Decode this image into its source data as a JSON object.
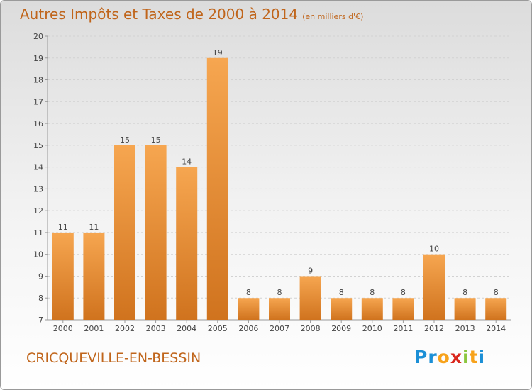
{
  "header": {
    "title": "Autres Impôts et Taxes de 2000 à 2014",
    "subtitle": "(en milliers d'€)"
  },
  "footer": {
    "town": "CRICQUEVILLE-EN-BESSIN",
    "logo_letters": [
      "P",
      "r",
      "o",
      "x",
      "i",
      "t",
      "i"
    ]
  },
  "colors": {
    "accent": "#c0651b",
    "bar_light": "#f6a650",
    "bar_dark": "#d0731e",
    "logo": [
      "#1b8fd6",
      "#1b8fd6",
      "#f7a21b",
      "#d9261c",
      "#8cc63f",
      "#f7a21b",
      "#1b8fd6"
    ]
  },
  "chart_data": {
    "type": "bar",
    "title": "Autres Impôts et Taxes de 2000 à 2014",
    "subtitle": "(en milliers d'€)",
    "xlabel": "",
    "ylabel": "",
    "categories": [
      "2000",
      "2001",
      "2002",
      "2003",
      "2004",
      "2005",
      "2006",
      "2007",
      "2008",
      "2009",
      "2010",
      "2011",
      "2012",
      "2013",
      "2014"
    ],
    "values": [
      11,
      11,
      15,
      15,
      14,
      19,
      8,
      8,
      9,
      8,
      8,
      8,
      10,
      8,
      8
    ],
    "data_labels": [
      "11",
      "11",
      "15",
      "15",
      "14",
      "19",
      "8",
      "8",
      "9",
      "8",
      "8",
      "8",
      "10",
      "8",
      "8"
    ],
    "ylim": [
      7,
      20
    ],
    "yticks": [
      "7",
      "8",
      "9",
      "10",
      "11",
      "12",
      "13",
      "14",
      "15",
      "16",
      "17",
      "18",
      "19",
      "20"
    ],
    "grid": true
  }
}
